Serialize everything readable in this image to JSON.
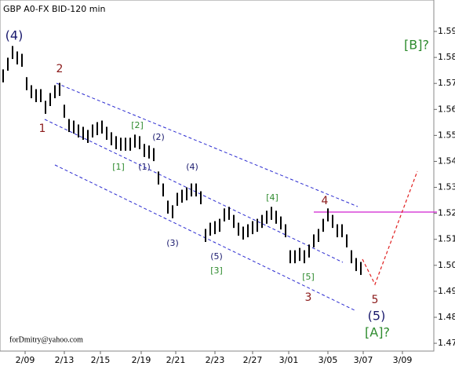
{
  "chart_data": {
    "type": "ohlc",
    "title": "GBP A0-FX BID-120 min",
    "x": [
      0,
      1,
      2,
      3,
      4,
      5,
      6,
      7,
      8,
      9,
      10,
      11,
      12,
      13,
      14,
      15,
      16,
      17,
      18,
      19,
      20,
      21,
      22,
      23,
      24,
      25,
      26,
      27,
      28,
      29,
      30,
      31,
      32,
      33,
      34,
      35,
      36,
      37,
      38,
      39,
      40,
      41,
      42,
      43,
      44,
      45,
      46,
      47,
      48,
      49,
      50,
      51,
      52,
      53,
      54,
      55,
      56,
      57,
      58,
      59,
      60,
      61,
      62,
      63,
      64,
      65,
      66,
      67,
      68,
      69,
      70,
      71,
      72,
      73,
      74,
      75,
      76
    ],
    "high": [
      1.5754,
      1.5799,
      1.5844,
      1.5823,
      1.5814,
      1.5724,
      1.5693,
      1.5678,
      1.5678,
      1.5633,
      1.5663,
      1.5693,
      1.5702,
      1.5618,
      1.5563,
      1.5557,
      1.5542,
      1.5533,
      1.5521,
      1.5542,
      1.5551,
      1.5557,
      1.5533,
      1.5512,
      1.5497,
      1.5491,
      1.5491,
      1.5491,
      1.5503,
      1.5497,
      1.5467,
      1.5461,
      1.5451,
      1.5361,
      1.5315,
      1.5249,
      1.5231,
      1.5279,
      1.5291,
      1.53,
      1.5315,
      1.5315,
      1.5285,
      1.514,
      1.5164,
      1.517,
      1.5179,
      1.5219,
      1.5225,
      1.5194,
      1.5164,
      1.5149,
      1.5158,
      1.517,
      1.5179,
      1.5194,
      1.521,
      1.5225,
      1.521,
      1.5188,
      1.5158,
      1.5058,
      1.5058,
      1.5067,
      1.5058,
      1.508,
      1.5119,
      1.514,
      1.5179,
      1.5219,
      1.5194,
      1.5158,
      1.5158,
      1.5119,
      1.5058,
      1.5028,
      1.5013
    ],
    "low": [
      1.5704,
      1.5749,
      1.5794,
      1.5773,
      1.5764,
      1.5674,
      1.5643,
      1.5628,
      1.5628,
      1.5583,
      1.5613,
      1.5643,
      1.5652,
      1.5568,
      1.5513,
      1.5507,
      1.5492,
      1.5483,
      1.5471,
      1.5492,
      1.5501,
      1.5507,
      1.5483,
      1.5462,
      1.5447,
      1.5441,
      1.5441,
      1.5441,
      1.5453,
      1.5447,
      1.5417,
      1.5411,
      1.5401,
      1.5311,
      1.5265,
      1.5199,
      1.5181,
      1.5229,
      1.5241,
      1.525,
      1.5265,
      1.5265,
      1.5235,
      1.509,
      1.5114,
      1.512,
      1.5129,
      1.5169,
      1.5175,
      1.5144,
      1.5114,
      1.5099,
      1.5108,
      1.512,
      1.5129,
      1.5144,
      1.516,
      1.5175,
      1.516,
      1.5138,
      1.5108,
      1.5008,
      1.5008,
      1.5017,
      1.5008,
      1.503,
      1.5069,
      1.509,
      1.5129,
      1.5169,
      1.5144,
      1.5108,
      1.5108,
      1.5069,
      1.5008,
      1.4978,
      1.4963
    ],
    "color": "#000000",
    "xlim": [
      -0.6667,
      91.5
    ],
    "xticks": [
      {
        "value": 4.67,
        "label": "2/09"
      },
      {
        "value": 13,
        "label": "2/13"
      },
      {
        "value": 20.67,
        "label": "2/15"
      },
      {
        "value": 29.33,
        "label": "2/19"
      },
      {
        "value": 36.67,
        "label": "2/21"
      },
      {
        "value": 45,
        "label": "2/23"
      },
      {
        "value": 53,
        "label": "2/27"
      },
      {
        "value": 60.67,
        "label": "3/01"
      },
      {
        "value": 69,
        "label": "3/05"
      },
      {
        "value": 76.5,
        "label": "3/07"
      },
      {
        "value": 84.83,
        "label": "3/09"
      }
    ],
    "ylim": [
      1.467,
      1.6021
    ],
    "yticks": [
      1.47,
      1.48,
      1.49,
      {
        "value": 1.5,
        "label": "1.50"
      },
      1.51,
      1.52,
      1.53,
      1.54,
      1.55,
      1.56,
      1.57,
      1.58,
      1.59
    ],
    "annotations": [
      {
        "text": "(4)",
        "color": "#1a1a6e"
      },
      {
        "text": "2",
        "color": "#8b1a1a"
      },
      {
        "text": "1",
        "color": "#8b1a1a"
      },
      {
        "text": "[2]",
        "color": "#2e8b2e"
      },
      {
        "text": "[1]",
        "color": "#2e8b2e"
      },
      {
        "text": "(2)",
        "color": "#1a1a6e"
      },
      {
        "text": "(1)",
        "color": "#1a1a6e"
      },
      {
        "text": "(4)",
        "color": "#1a1a6e"
      },
      {
        "text": "(3)",
        "color": "#1a1a6e"
      },
      {
        "text": "(5)",
        "color": "#1a1a6e"
      },
      {
        "text": "[3]",
        "color": "#2e8b2e"
      },
      {
        "text": "[4]",
        "color": "#2e8b2e"
      },
      {
        "text": "4",
        "color": "#8b1a1a"
      },
      {
        "text": "[5]",
        "color": "#2e8b2e"
      },
      {
        "text": "3",
        "color": "#8b1a1a"
      },
      {
        "text": "5",
        "color": "#8b1a1a"
      },
      {
        "text": "(5)",
        "color": "#1a1a6e"
      },
      {
        "text": "[A]?",
        "color": "#2e8b2e"
      },
      {
        "text": "[B]?",
        "color": "#2e8b2e"
      },
      {
        "text": "forDmitry@yahoo.com",
        "color": "#000000"
      }
    ]
  }
}
